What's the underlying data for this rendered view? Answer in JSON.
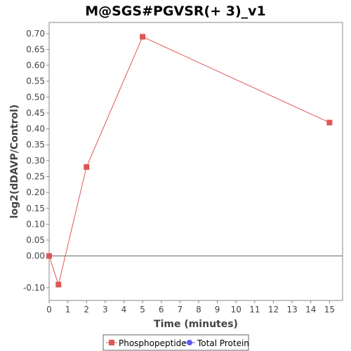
{
  "chart_data": {
    "type": "line",
    "title": "M@SGS#PGVSR(+ 3)_v1",
    "xlabel": "Time (minutes)",
    "ylabel": "log2(dDAVP/Control)",
    "xlim": [
      0,
      15.7
    ],
    "ylim": [
      -0.14,
      0.735
    ],
    "x_ticks": [
      0,
      1,
      2,
      3,
      4,
      5,
      6,
      7,
      8,
      9,
      10,
      11,
      12,
      13,
      14,
      15
    ],
    "y_ticks": [
      -0.1,
      0.0,
      0.05,
      0.1,
      0.15,
      0.2,
      0.25,
      0.3,
      0.35,
      0.4,
      0.45,
      0.5,
      0.55,
      0.6,
      0.65,
      0.7
    ],
    "y_tick_labels": [
      "-0.10",
      "0.00",
      "0.05",
      "0.10",
      "0.15",
      "0.20",
      "0.25",
      "0.30",
      "0.35",
      "0.40",
      "0.45",
      "0.50",
      "0.55",
      "0.60",
      "0.65",
      "0.70"
    ],
    "zero_line": true,
    "grid": false,
    "legend_position": "bottom",
    "series": [
      {
        "name": "Phosphopeptide",
        "color": "#e05555",
        "marker": "square",
        "x": [
          0,
          0.5,
          2,
          5,
          15
        ],
        "y": [
          0.0,
          -0.09,
          0.28,
          0.69,
          0.42
        ]
      },
      {
        "name": "Total Protein",
        "color": "#5b5bef",
        "marker": "circle",
        "x": [],
        "y": []
      }
    ]
  }
}
